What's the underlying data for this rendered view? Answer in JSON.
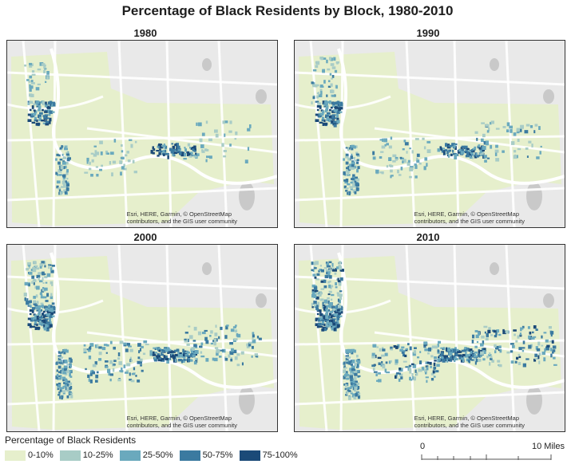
{
  "title": "Percentage of Black Residents by Block, 1980-2010",
  "attribution": [
    "Esri, HERE, Garmin, © OpenStreetMap",
    "contributors, and the GIS user community"
  ],
  "panels": [
    {
      "year": "1980",
      "intensity": 0.35
    },
    {
      "year": "1990",
      "intensity": 0.55
    },
    {
      "year": "2000",
      "intensity": 0.8
    },
    {
      "year": "2010",
      "intensity": 1.0
    }
  ],
  "legend": {
    "title": "Percentage of Black Residents",
    "items": [
      {
        "label": "0-10%",
        "color": "#e6efcc"
      },
      {
        "label": "10-25%",
        "color": "#a8ccc6"
      },
      {
        "label": "25-50%",
        "color": "#6aa9bd"
      },
      {
        "label": "50-75%",
        "color": "#3b7aa0"
      },
      {
        "label": "75-100%",
        "color": "#1b4a78"
      }
    ]
  },
  "scale": {
    "start": "0",
    "end": "10 Miles"
  },
  "colors": {
    "basemap": "#e9e9e9",
    "water": "#c9c9c9",
    "roads": "#ffffff"
  }
}
